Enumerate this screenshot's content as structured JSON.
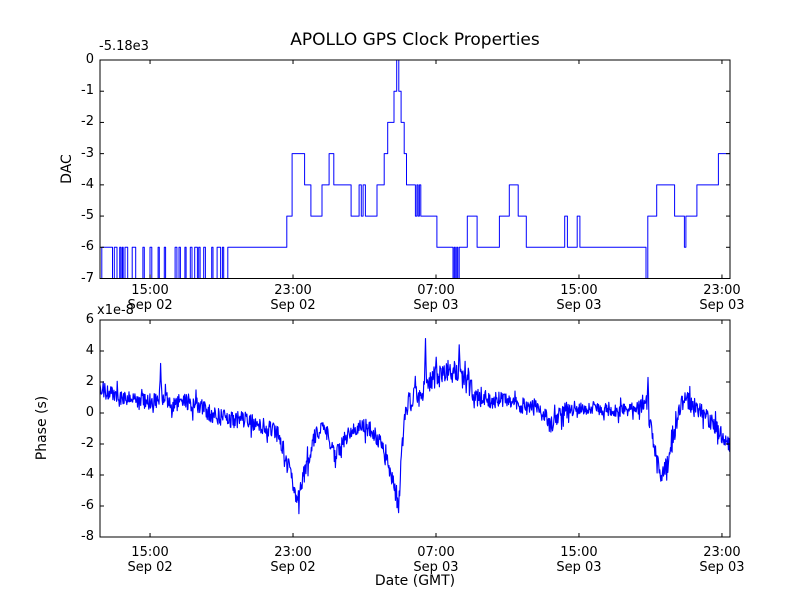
{
  "figure": {
    "title": "APOLLO GPS Clock Properties",
    "xlabel": "Date (GMT)",
    "line_color": "#0000ff",
    "background_color": "#ffffff"
  },
  "chart_data": [
    {
      "type": "line",
      "subplot": "top",
      "title": "APOLLO GPS Clock Properties",
      "ylabel": "DAC",
      "y_offset_text": "-5.18e3",
      "ylim": [
        -7,
        0
      ],
      "yticks": [
        0,
        -1,
        -2,
        -3,
        -4,
        -5,
        -6,
        -7
      ],
      "xlim_hours": [
        12.2,
        47.45
      ],
      "xtick_hours": [
        15,
        23,
        31,
        39,
        47
      ],
      "xtick_labels": [
        [
          "15:00",
          "Sep 02"
        ],
        [
          "23:00",
          "Sep 02"
        ],
        [
          "07:00",
          "Sep 03"
        ],
        [
          "15:00",
          "Sep 03"
        ],
        [
          "23:00",
          "Sep 03"
        ]
      ],
      "grid": false,
      "legend": null,
      "series_note": "Step series: [hours since Sep 02 00:00 GMT, DAC value]; value holds until next point. Y axis offset -5.18e3 (true DAC = value - 5180).",
      "steps": [
        [
          12.2,
          -7
        ],
        [
          12.3,
          -6
        ],
        [
          12.9,
          -7
        ],
        [
          13.0,
          -6
        ],
        [
          13.15,
          -7
        ],
        [
          13.3,
          -6
        ],
        [
          13.37,
          -7
        ],
        [
          13.44,
          -6
        ],
        [
          13.5,
          -7
        ],
        [
          13.6,
          -6
        ],
        [
          13.75,
          -7
        ],
        [
          14.0,
          -6
        ],
        [
          14.2,
          -7
        ],
        [
          14.6,
          -6
        ],
        [
          14.68,
          -7
        ],
        [
          15.0,
          -6
        ],
        [
          15.1,
          -7
        ],
        [
          15.45,
          -6
        ],
        [
          15.52,
          -7
        ],
        [
          15.8,
          -6
        ],
        [
          15.87,
          -7
        ],
        [
          16.4,
          -6
        ],
        [
          16.5,
          -7
        ],
        [
          16.62,
          -6
        ],
        [
          16.7,
          -7
        ],
        [
          16.95,
          -6
        ],
        [
          17.02,
          -7
        ],
        [
          17.25,
          -6
        ],
        [
          17.35,
          -7
        ],
        [
          17.5,
          -6
        ],
        [
          17.65,
          -7
        ],
        [
          17.72,
          -6
        ],
        [
          17.8,
          -7
        ],
        [
          18.0,
          -6
        ],
        [
          18.1,
          -7
        ],
        [
          18.45,
          -6
        ],
        [
          18.52,
          -7
        ],
        [
          18.75,
          -6
        ],
        [
          18.95,
          -7
        ],
        [
          19.05,
          -6
        ],
        [
          19.12,
          -7
        ],
        [
          19.35,
          -6
        ],
        [
          22.65,
          -5
        ],
        [
          22.95,
          -3
        ],
        [
          23.65,
          -4
        ],
        [
          24.0,
          -5
        ],
        [
          24.62,
          -4
        ],
        [
          25.02,
          -3
        ],
        [
          25.28,
          -4
        ],
        [
          26.25,
          -5
        ],
        [
          26.7,
          -4
        ],
        [
          26.82,
          -5
        ],
        [
          26.92,
          -4
        ],
        [
          27.05,
          -5
        ],
        [
          27.7,
          -4
        ],
        [
          28.1,
          -3
        ],
        [
          28.3,
          -2
        ],
        [
          28.65,
          -1
        ],
        [
          28.8,
          0
        ],
        [
          28.92,
          -1
        ],
        [
          29.05,
          -2
        ],
        [
          29.22,
          -3
        ],
        [
          29.35,
          -4
        ],
        [
          29.85,
          -5
        ],
        [
          29.93,
          -4
        ],
        [
          30.0,
          -5
        ],
        [
          30.07,
          -4
        ],
        [
          30.15,
          -5
        ],
        [
          31.05,
          -6
        ],
        [
          31.95,
          -7
        ],
        [
          32.02,
          -6
        ],
        [
          32.08,
          -7
        ],
        [
          32.16,
          -6
        ],
        [
          32.22,
          -7
        ],
        [
          32.3,
          -6
        ],
        [
          32.75,
          -5
        ],
        [
          33.3,
          -6
        ],
        [
          34.55,
          -5
        ],
        [
          35.1,
          -4
        ],
        [
          35.6,
          -5
        ],
        [
          36.05,
          -6
        ],
        [
          38.2,
          -5
        ],
        [
          38.35,
          -6
        ],
        [
          38.9,
          -5
        ],
        [
          39.05,
          -6
        ],
        [
          42.75,
          -7
        ],
        [
          42.85,
          -5
        ],
        [
          43.35,
          -4
        ],
        [
          44.35,
          -5
        ],
        [
          44.9,
          -6
        ],
        [
          44.98,
          -5
        ],
        [
          45.6,
          -4
        ],
        [
          46.8,
          -3
        ],
        [
          47.45,
          -3
        ]
      ]
    },
    {
      "type": "line",
      "subplot": "bottom",
      "ylabel": "Phase (s)",
      "y_multiplier_text": "x1e-8",
      "xlabel": "Date (GMT)",
      "ylim": [
        -8,
        6
      ],
      "yticks": [
        6,
        4,
        2,
        0,
        -2,
        -4,
        -6,
        -8
      ],
      "xlim_hours": [
        12.2,
        47.45
      ],
      "xtick_hours": [
        15,
        23,
        31,
        39,
        47
      ],
      "xtick_labels": [
        [
          "15:00",
          "Sep 02"
        ],
        [
          "23:00",
          "Sep 02"
        ],
        [
          "07:00",
          "Sep 03"
        ],
        [
          "15:00",
          "Sep 03"
        ],
        [
          "23:00",
          "Sep 03"
        ]
      ],
      "grid": false,
      "legend": null,
      "series_note": "Noisy phase trace (units 1e-8 s). backbone = smoothed trend keyframes [hours, value]; noise_amplitude = [hours, +/- amplitude] holding until next; spikes = isolated sharp excursions [hours, value].",
      "backbone": [
        [
          12.2,
          1.7
        ],
        [
          12.6,
          1.3
        ],
        [
          13.2,
          1.0
        ],
        [
          14.0,
          0.8
        ],
        [
          15.0,
          0.7
        ],
        [
          15.6,
          1.0
        ],
        [
          16.2,
          0.6
        ],
        [
          17.0,
          0.7
        ],
        [
          17.8,
          0.4
        ],
        [
          18.5,
          -0.1
        ],
        [
          19.5,
          -0.4
        ],
        [
          20.5,
          -0.5
        ],
        [
          21.5,
          -0.9
        ],
        [
          22.2,
          -1.4
        ],
        [
          22.7,
          -3.2
        ],
        [
          23.25,
          -5.8
        ],
        [
          23.7,
          -3.6
        ],
        [
          24.2,
          -1.6
        ],
        [
          24.7,
          -0.7
        ],
        [
          25.0,
          -1.5
        ],
        [
          25.35,
          -2.8
        ],
        [
          25.9,
          -1.7
        ],
        [
          26.5,
          -1.0
        ],
        [
          27.0,
          -0.8
        ],
        [
          27.5,
          -1.2
        ],
        [
          27.9,
          -2.0
        ],
        [
          28.4,
          -3.6
        ],
        [
          28.75,
          -5.2
        ],
        [
          28.9,
          -6.5
        ],
        [
          29.05,
          -3.0
        ],
        [
          29.3,
          0.3
        ],
        [
          29.7,
          0.9
        ],
        [
          30.1,
          1.2
        ],
        [
          30.4,
          1.7
        ],
        [
          30.8,
          2.2
        ],
        [
          31.3,
          2.5
        ],
        [
          31.8,
          2.7
        ],
        [
          32.3,
          2.5
        ],
        [
          32.7,
          1.9
        ],
        [
          33.1,
          1.3
        ],
        [
          33.6,
          0.8
        ],
        [
          34.1,
          0.8
        ],
        [
          34.6,
          0.9
        ],
        [
          35.1,
          0.6
        ],
        [
          35.6,
          0.5
        ],
        [
          36.1,
          0.4
        ],
        [
          36.6,
          0.4
        ],
        [
          37.1,
          -0.1
        ],
        [
          37.4,
          -0.9
        ],
        [
          37.8,
          -0.2
        ],
        [
          38.3,
          0.2
        ],
        [
          39.0,
          0.4
        ],
        [
          39.7,
          0.3
        ],
        [
          40.4,
          0.3
        ],
        [
          41.1,
          0.2
        ],
        [
          41.8,
          0.2
        ],
        [
          42.4,
          0.4
        ],
        [
          42.75,
          1.0
        ],
        [
          43.0,
          -0.8
        ],
        [
          43.3,
          -2.8
        ],
        [
          43.6,
          -4.3
        ],
        [
          43.9,
          -3.3
        ],
        [
          44.3,
          -1.6
        ],
        [
          44.7,
          0.6
        ],
        [
          45.0,
          0.9
        ],
        [
          45.4,
          0.4
        ],
        [
          45.8,
          0.2
        ],
        [
          46.2,
          -0.3
        ],
        [
          46.6,
          -0.8
        ],
        [
          47.0,
          -1.4
        ],
        [
          47.45,
          -2.0
        ]
      ],
      "noise_amplitude": [
        [
          12.2,
          0.55
        ],
        [
          29.4,
          0.75
        ],
        [
          33.5,
          0.55
        ],
        [
          39.0,
          0.45
        ],
        [
          42.5,
          0.55
        ]
      ],
      "spikes": [
        [
          15.6,
          3.2
        ],
        [
          30.4,
          4.8
        ],
        [
          31.0,
          3.6
        ],
        [
          32.3,
          4.4
        ],
        [
          42.85,
          2.3
        ]
      ]
    }
  ]
}
